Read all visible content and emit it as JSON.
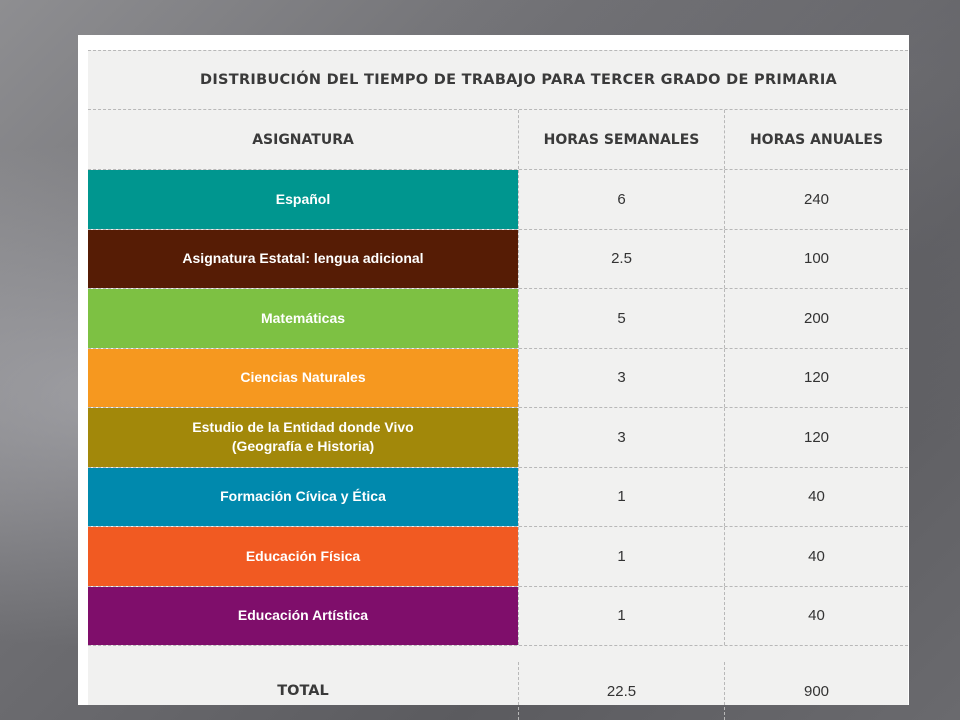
{
  "table": {
    "title": "DISTRIBUCIÓN DEL TIEMPO DE TRABAJO PARA TERCER GRADO DE PRIMARIA",
    "headers": {
      "subject": "ASIGNATURA",
      "weekly": "HORAS SEMANALES",
      "annual": "HORAS ANUALES"
    },
    "rows": [
      {
        "subject": "Español",
        "subject_line2": "",
        "weekly": "6",
        "annual": "240",
        "color": "#00968f"
      },
      {
        "subject": "Asignatura Estatal: lengua adicional",
        "subject_line2": "",
        "weekly": "2.5",
        "annual": "100",
        "color": "#561c05"
      },
      {
        "subject": "Matemáticas",
        "subject_line2": "",
        "weekly": "5",
        "annual": "200",
        "color": "#7dc143"
      },
      {
        "subject": "Ciencias Naturales",
        "subject_line2": "",
        "weekly": "3",
        "annual": "120",
        "color": "#f6981f"
      },
      {
        "subject": "Estudio de la Entidad donde Vivo",
        "subject_line2": "(Geografía e Historia)",
        "weekly": "3",
        "annual": "120",
        "color": "#a2880a"
      },
      {
        "subject": "Formación Cívica y Ética",
        "subject_line2": "",
        "weekly": "1",
        "annual": "40",
        "color": "#0089ad"
      },
      {
        "subject": "Educación Física",
        "subject_line2": "",
        "weekly": "1",
        "annual": "40",
        "color": "#f15a22"
      },
      {
        "subject": "Educación Artística",
        "subject_line2": "",
        "weekly": "1",
        "annual": "40",
        "color": "#7f0e6b"
      }
    ],
    "total": {
      "label": "TOTAL",
      "weekly": "22.5",
      "annual": "900"
    }
  }
}
